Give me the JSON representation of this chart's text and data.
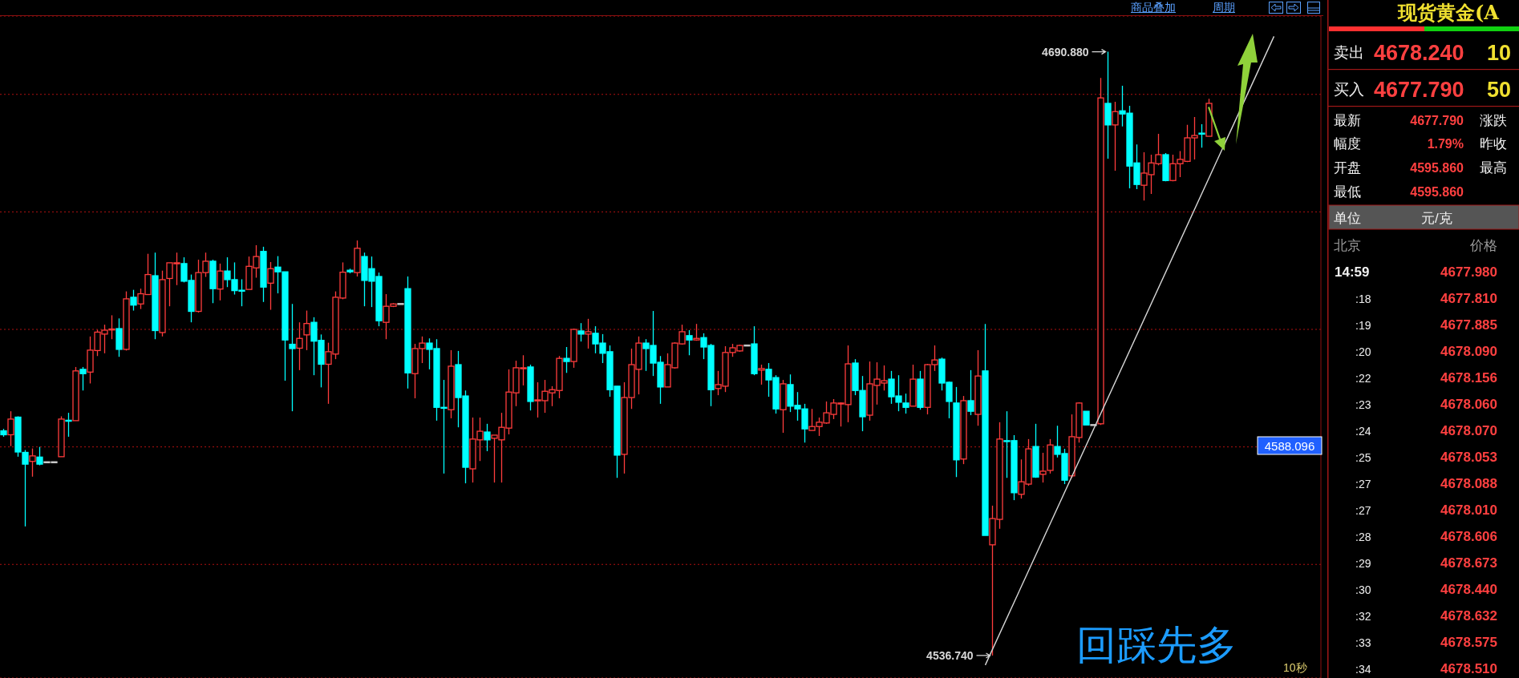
{
  "chart_data": [
    {
      "type": "candlestick",
      "categories": [
        null,
        null,
        null,
        null,
        null,
        null,
        null,
        null,
        null,
        null,
        null,
        null,
        null,
        null,
        null,
        null,
        null,
        null,
        null,
        null,
        null,
        null,
        null,
        null,
        null,
        null,
        null,
        null,
        null,
        null,
        null,
        null,
        null,
        null,
        null,
        null,
        null,
        null,
        null,
        null,
        null,
        null,
        null,
        null,
        null,
        null,
        null,
        null,
        null,
        null,
        null,
        null,
        null,
        null,
        null,
        null,
        null,
        null,
        null,
        null,
        null,
        null,
        null,
        null,
        null,
        null,
        null,
        null,
        null,
        null,
        null,
        null,
        null,
        null,
        null,
        null,
        null,
        null,
        null,
        null,
        null,
        null,
        null,
        null,
        null,
        null,
        null,
        null,
        null,
        null,
        null,
        null,
        null,
        null,
        null,
        null,
        null,
        null,
        null,
        null,
        null,
        null,
        null,
        null,
        null,
        null,
        null,
        null,
        null,
        null,
        null,
        null,
        null,
        null,
        null,
        null,
        null,
        null,
        null,
        null,
        null,
        null,
        null,
        null,
        null,
        null,
        null,
        null,
        null,
        null,
        null,
        null,
        null,
        null,
        null,
        null,
        null,
        null,
        null,
        null,
        null,
        null,
        null,
        null,
        null,
        null,
        null,
        null,
        null,
        null,
        null,
        null,
        null,
        null,
        null,
        null,
        null,
        null,
        null,
        null,
        null,
        null,
        null,
        null,
        null,
        null,
        null,
        null,
        null,
        null,
        null,
        null,
        null,
        null,
        null,
        null,
        null,
        null,
        null,
        null,
        null,
        null,
        null
      ],
      "ohlc": [
        [
          4594.1,
          4594.6,
          4592.6,
          4593.1
        ],
        [
          4593.1,
          4599.1,
          4590.2,
          4597.1
        ],
        [
          4597.6,
          4597.8,
          4587.5,
          4588.7
        ],
        [
          4588.6,
          4589.2,
          4569.7,
          4585.6
        ],
        [
          4586.3,
          4589.6,
          4582.4,
          4587.7
        ],
        [
          4587.4,
          4590.0,
          4585.3,
          4585.6
        ],
        [
          4586.1,
          4586.1,
          4586.1,
          4586.1
        ],
        [
          4586.1,
          4586.1,
          4586.1,
          4586.1
        ],
        [
          4587.5,
          4597.8,
          4587.5,
          4597.1
        ],
        [
          4596.8,
          4598.7,
          4592.6,
          4596.8
        ],
        [
          4596.7,
          4610.4,
          4596.7,
          4609.4
        ],
        [
          4609.8,
          4610.4,
          4604.4,
          4608.7
        ],
        [
          4609.1,
          4618.2,
          4606.2,
          4614.7
        ],
        [
          4614.6,
          4619.9,
          4613.2,
          4619.3
        ],
        [
          4618.8,
          4621.2,
          4613.9,
          4619.8
        ],
        [
          4620.1,
          4623.6,
          4617.5,
          4620.1
        ],
        [
          4620.2,
          4622.8,
          4613.0,
          4614.9
        ],
        [
          4614.9,
          4629.7,
          4614.6,
          4627.8
        ],
        [
          4628.2,
          4630.1,
          4624.8,
          4626.2
        ],
        [
          4626.5,
          4630.4,
          4625.2,
          4629.1
        ],
        [
          4628.9,
          4639.3,
          4628.9,
          4634.0
        ],
        [
          4633.7,
          4639.6,
          4617.5,
          4619.7
        ],
        [
          4619.2,
          4635.0,
          4618.2,
          4632.7
        ],
        [
          4633.0,
          4637.0,
          4625.9,
          4637.0
        ],
        [
          4637.0,
          4639.6,
          4631.3,
          4637.0
        ],
        [
          4636.8,
          4638.4,
          4632.0,
          4632.3
        ],
        [
          4632.5,
          4634.0,
          4621.8,
          4624.6
        ],
        [
          4624.6,
          4637.8,
          4624.3,
          4634.5
        ],
        [
          4634.5,
          4639.6,
          4633.4,
          4637.4
        ],
        [
          4637.4,
          4637.8,
          4626.7,
          4630.4
        ],
        [
          4630.3,
          4636.8,
          4627.4,
          4634.9
        ],
        [
          4634.9,
          4638.4,
          4630.8,
          4632.7
        ],
        [
          4632.7,
          4637.1,
          4628.9,
          4629.9
        ],
        [
          4630.0,
          4632.8,
          4625.9,
          4630.0
        ],
        [
          4630.2,
          4638.6,
          4630.2,
          4636.1
        ],
        [
          4635.7,
          4641.5,
          4633.2,
          4638.6
        ],
        [
          4639.9,
          4641.1,
          4627.0,
          4630.8
        ],
        [
          4631.8,
          4637.2,
          4625.0,
          4635.5
        ],
        [
          4635.9,
          4638.7,
          4629.2,
          4634.7
        ],
        [
          4634.7,
          4634.7,
          4606.9,
          4617.3
        ],
        [
          4616.2,
          4626.5,
          4599.1,
          4615.1
        ],
        [
          4615.2,
          4621.8,
          4609.6,
          4617.7
        ],
        [
          4618.6,
          4624.8,
          4614.7,
          4621.5
        ],
        [
          4621.8,
          4623.1,
          4608.3,
          4617.0
        ],
        [
          4617.2,
          4618.7,
          4605.2,
          4611.1
        ],
        [
          4611.1,
          4616.6,
          4601.0,
          4614.3
        ],
        [
          4613.7,
          4629.7,
          4612.4,
          4628.2
        ],
        [
          4628.0,
          4637.1,
          4627.7,
          4634.6
        ],
        [
          4635.1,
          4635.5,
          4634.3,
          4634.7
        ],
        [
          4634.5,
          4642.7,
          4633.5,
          4640.7
        ],
        [
          4638.6,
          4639.6,
          4625.9,
          4632.5
        ],
        [
          4635.5,
          4638.6,
          4625.7,
          4632.3
        ],
        [
          4633.5,
          4634.5,
          4620.8,
          4622.2
        ],
        [
          4621.8,
          4629.0,
          4617.5,
          4625.9
        ],
        [
          4625.9,
          4626.7,
          4625.7,
          4626.5
        ],
        [
          4626.5,
          4626.5,
          4626.5,
          4626.5
        ],
        [
          4630.4,
          4633.5,
          4604.9,
          4608.9
        ],
        [
          4608.7,
          4616.3,
          4602.4,
          4615.1
        ],
        [
          4615.1,
          4618.2,
          4611.4,
          4616.5
        ],
        [
          4616.5,
          4617.7,
          4609.8,
          4614.9
        ],
        [
          4615.1,
          4617.5,
          4596.7,
          4600.1
        ],
        [
          4600.1,
          4607.1,
          4583.2,
          4600.1
        ],
        [
          4599.5,
          4614.7,
          4597.3,
          4610.6
        ],
        [
          4611.0,
          4614.5,
          4595.0,
          4602.6
        ],
        [
          4603.0,
          4604.4,
          4580.7,
          4584.8
        ],
        [
          4584.4,
          4597.5,
          4580.9,
          4592.0
        ],
        [
          4591.8,
          4597.5,
          4586.4,
          4594.0
        ],
        [
          4593.8,
          4595.9,
          4588.9,
          4591.8
        ],
        [
          4592.2,
          4593.0,
          4580.9,
          4593.0
        ],
        [
          4591.8,
          4598.7,
          4580.9,
          4595.0
        ],
        [
          4594.8,
          4609.8,
          4593.2,
          4604.0
        ],
        [
          4603.8,
          4612.0,
          4600.4,
          4610.2
        ],
        [
          4610.2,
          4613.4,
          4605.7,
          4610.2
        ],
        [
          4610.4,
          4611.0,
          4599.3,
          4601.6
        ],
        [
          4601.8,
          4606.5,
          4597.5,
          4602.0
        ],
        [
          4601.8,
          4607.1,
          4598.7,
          4604.2
        ],
        [
          4603.8,
          4605.5,
          4600.4,
          4604.6
        ],
        [
          4604.4,
          4613.2,
          4602.4,
          4612.6
        ],
        [
          4612.6,
          4615.5,
          4608.9,
          4611.8
        ],
        [
          4611.8,
          4620.2,
          4610.2,
          4620.0
        ],
        [
          4619.6,
          4621.6,
          4616.9,
          4618.8
        ],
        [
          4618.8,
          4622.7,
          4615.1,
          4619.4
        ],
        [
          4619.0,
          4620.8,
          4613.9,
          4616.3
        ],
        [
          4616.5,
          4618.8,
          4611.4,
          4613.9
        ],
        [
          4614.3,
          4615.9,
          4602.8,
          4604.6
        ],
        [
          4605.5,
          4605.5,
          4582.1,
          4587.9
        ],
        [
          4588.1,
          4606.5,
          4583.2,
          4602.6
        ],
        [
          4602.6,
          4615.1,
          4599.7,
          4611.0
        ],
        [
          4609.8,
          4618.2,
          4603.4,
          4616.5
        ],
        [
          4616.5,
          4617.5,
          4609.4,
          4615.1
        ],
        [
          4615.9,
          4624.7,
          4608.1,
          4611.4
        ],
        [
          4611.6,
          4613.2,
          4601.0,
          4605.3
        ],
        [
          4605.3,
          4613.9,
          4605.3,
          4611.0
        ],
        [
          4610.2,
          4616.7,
          4610.0,
          4616.5
        ],
        [
          4616.3,
          4621.2,
          4616.1,
          4619.4
        ],
        [
          4618.4,
          4619.8,
          4613.4,
          4617.3
        ],
        [
          4617.3,
          4621.4,
          4617.1,
          4617.7
        ],
        [
          4617.9,
          4619.0,
          4612.4,
          4615.5
        ],
        [
          4615.9,
          4616.3,
          4600.4,
          4604.6
        ],
        [
          4604.9,
          4609.4,
          4603.2,
          4605.9
        ],
        [
          4605.5,
          4615.7,
          4604.0,
          4614.1
        ],
        [
          4614.1,
          4616.3,
          4613.0,
          4615.3
        ],
        [
          4614.5,
          4616.1,
          4614.3,
          4615.9
        ],
        [
          4615.9,
          4615.9,
          4615.9,
          4615.9
        ],
        [
          4616.3,
          4620.8,
          4608.3,
          4608.7
        ],
        [
          4609.6,
          4611.0,
          4605.9,
          4610.0
        ],
        [
          4609.8,
          4611.4,
          4602.8,
          4607.1
        ],
        [
          4607.7,
          4608.3,
          4598.5,
          4599.7
        ],
        [
          4599.5,
          4607.1,
          4593.6,
          4606.1
        ],
        [
          4605.9,
          4608.5,
          4598.9,
          4600.4
        ],
        [
          4600.6,
          4604.0,
          4596.7,
          4599.7
        ],
        [
          4599.7,
          4601.0,
          4591.1,
          4594.6
        ],
        [
          4594.2,
          4599.7,
          4594.2,
          4595.2
        ],
        [
          4595.2,
          4597.5,
          4592.8,
          4596.3
        ],
        [
          4596.1,
          4601.6,
          4595.9,
          4598.7
        ],
        [
          4598.3,
          4602.2,
          4597.1,
          4601.2
        ],
        [
          4601.2,
          4601.4,
          4595.2,
          4601.2
        ],
        [
          4600.8,
          4615.9,
          4596.3,
          4611.2
        ],
        [
          4611.4,
          4612.4,
          4603.2,
          4604.4
        ],
        [
          4604.4,
          4608.1,
          4594.0,
          4597.7
        ],
        [
          4598.1,
          4611.8,
          4596.7,
          4606.1
        ],
        [
          4605.7,
          4611.6,
          4600.8,
          4607.3
        ],
        [
          4606.3,
          4610.8,
          4604.4,
          4606.9
        ],
        [
          4607.3,
          4609.4,
          4601.0,
          4602.8
        ],
        [
          4603.0,
          4608.3,
          4599.1,
          4601.4
        ],
        [
          4601.2,
          4603.6,
          4598.5,
          4600.1
        ],
        [
          4600.4,
          4611.0,
          4600.4,
          4607.3
        ],
        [
          4607.3,
          4609.4,
          4599.5,
          4600.1
        ],
        [
          4600.1,
          4611.2,
          4598.3,
          4611.0
        ],
        [
          4611.0,
          4615.9,
          4609.4,
          4612.2
        ],
        [
          4612.4,
          4612.8,
          4604.4,
          4606.3
        ],
        [
          4606.5,
          4606.7,
          4597.3,
          4601.6
        ],
        [
          4601.2,
          4605.3,
          4582.3,
          4586.7
        ],
        [
          4586.9,
          4603.0,
          4585.6,
          4601.8
        ],
        [
          4601.8,
          4609.6,
          4598.1,
          4599.1
        ],
        [
          4598.3,
          4614.7,
          4595.4,
          4608.1
        ],
        [
          4609.4,
          4621.4,
          4567.4,
          4567.4
        ],
        [
          4565.0,
          4575.0,
          4536.74,
          4571.7
        ],
        [
          4571.5,
          4596.3,
          4569.1,
          4592.0
        ],
        [
          4591.6,
          4599.1,
          4582.1,
          4591.6
        ],
        [
          4591.6,
          4593.0,
          4576.4,
          4578.3
        ],
        [
          4577.9,
          4586.8,
          4576.8,
          4581.1
        ],
        [
          4580.5,
          4592.0,
          4580.1,
          4589.5
        ],
        [
          4590.1,
          4595.9,
          4582.1,
          4582.3
        ],
        [
          4583.0,
          4588.5,
          4580.9,
          4583.8
        ],
        [
          4584.0,
          4592.0,
          4583.2,
          4590.5
        ],
        [
          4590.1,
          4595.4,
          4587.3,
          4588.1
        ],
        [
          4588.3,
          4589.5,
          4580.5,
          4581.5
        ],
        [
          4582.6,
          4598.3,
          4582.1,
          4592.6
        ],
        [
          4592.4,
          4601.4,
          4591.1,
          4601.2
        ],
        [
          4599.1,
          4599.1,
          4595.6,
          4595.6
        ],
        [
          4595.6,
          4595.6,
          4595.6,
          4595.6
        ],
        [
          4595.9,
          4684.2,
          4595.6,
          4679.1
        ],
        [
          4677.7,
          4690.88,
          4663.6,
          4672.2
        ],
        [
          4672.2,
          4678.1,
          4660.5,
          4675.6
        ],
        [
          4675.8,
          4682.2,
          4671.8,
          4675.0
        ],
        [
          4675.2,
          4677.1,
          4656.0,
          4661.7
        ],
        [
          4662.5,
          4667.2,
          4655.8,
          4657.0
        ],
        [
          4656.8,
          4665.2,
          4652.9,
          4659.9
        ],
        [
          4659.5,
          4664.6,
          4654.6,
          4662.5
        ],
        [
          4662.3,
          4669.9,
          4661.9,
          4664.6
        ],
        [
          4664.6,
          4665.0,
          4657.8,
          4658.0
        ],
        [
          4658.0,
          4664.6,
          4657.8,
          4662.3
        ],
        [
          4662.3,
          4665.5,
          4658.9,
          4663.4
        ],
        [
          4662.9,
          4672.2,
          4662.7,
          4668.9
        ],
        [
          4668.9,
          4674.2,
          4663.4,
          4669.5
        ],
        [
          4670.1,
          4672.4,
          4666.4,
          4670.1
        ],
        [
          4669.3,
          4678.9,
          4669.3,
          4677.7
        ],
        null,
        null,
        null,
        null,
        null,
        null,
        null,
        null,
        null,
        null,
        null,
        null,
        null,
        null,
        null
      ],
      "colors": [
        "#00ffff",
        "#ff3c3c",
        "#00ffff",
        "#00ffff",
        "#ff3c3c",
        "#00ffff",
        "#c8c8c8",
        "#c8c8c8",
        "#ff3c3c",
        "#00ffff",
        "#ff3c3c",
        "#00ffff",
        "#ff3c3c",
        "#ff3c3c",
        "#ff3c3c",
        "#ff3c3c",
        "#00ffff",
        "#ff3c3c",
        "#00ffff",
        "#ff3c3c",
        "#ff3c3c",
        "#00ffff",
        "#ff3c3c",
        "#ff3c3c",
        "#ff3c3c",
        "#00ffff",
        "#00ffff",
        "#ff3c3c",
        "#ff3c3c",
        "#00ffff",
        "#ff3c3c",
        "#00ffff",
        "#00ffff",
        "#00ffff",
        "#ff3c3c",
        "#ff3c3c",
        "#00ffff",
        "#ff3c3c",
        "#00ffff",
        "#00ffff",
        "#00ffff",
        "#ff3c3c",
        "#ff3c3c",
        "#00ffff",
        "#00ffff",
        "#ff3c3c",
        "#ff3c3c",
        "#ff3c3c",
        "#00ffff",
        "#ff3c3c",
        "#00ffff",
        "#00ffff",
        "#00ffff",
        "#ff3c3c",
        "#ff3c3c",
        "#c8c8c8",
        "#00ffff",
        "#ff3c3c",
        "#ff3c3c",
        "#00ffff",
        "#00ffff",
        "#00ffff",
        "#ff3c3c",
        "#00ffff",
        "#00ffff",
        "#ff3c3c",
        "#ff3c3c",
        "#00ffff",
        "#ff3c3c",
        "#ff3c3c",
        "#ff3c3c",
        "#ff3c3c",
        "#ff3c3c",
        "#00ffff",
        "#ff3c3c",
        "#ff3c3c",
        "#ff3c3c",
        "#ff3c3c",
        "#00ffff",
        "#ff3c3c",
        "#00ffff",
        "#ff3c3c",
        "#00ffff",
        "#00ffff",
        "#00ffff",
        "#00ffff",
        "#ff3c3c",
        "#ff3c3c",
        "#ff3c3c",
        "#00ffff",
        "#00ffff",
        "#00ffff",
        "#ff3c3c",
        "#ff3c3c",
        "#ff3c3c",
        "#00ffff",
        "#ff3c3c",
        "#00ffff",
        "#00ffff",
        "#ff3c3c",
        "#ff3c3c",
        "#ff3c3c",
        "#ff3c3c",
        "#c8c8c8",
        "#00ffff",
        "#ff3c3c",
        "#00ffff",
        "#00ffff",
        "#ff3c3c",
        "#00ffff",
        "#00ffff",
        "#00ffff",
        "#ff3c3c",
        "#ff3c3c",
        "#ff3c3c",
        "#ff3c3c",
        "#ff3c3c",
        "#ff3c3c",
        "#00ffff",
        "#00ffff",
        "#ff3c3c",
        "#ff3c3c",
        "#ff3c3c",
        "#00ffff",
        "#00ffff",
        "#00ffff",
        "#ff3c3c",
        "#00ffff",
        "#ff3c3c",
        "#ff3c3c",
        "#00ffff",
        "#00ffff",
        "#00ffff",
        "#ff3c3c",
        "#00ffff",
        "#ff3c3c",
        "#00ffff",
        "#ff3c3c",
        "#ff3c3c",
        "#00ffff",
        "#00ffff",
        "#ff3c3c",
        "#ff3c3c",
        "#00ffff",
        "#ff3c3c",
        "#ff3c3c",
        "#00ffff",
        "#00ffff",
        "#ff3c3c",
        "#ff3c3c",
        "#00ffff",
        "#c8c8c8",
        "#ff3c3c",
        "#00ffff",
        "#ff3c3c",
        "#00ffff",
        "#00ffff",
        "#00ffff",
        "#ff3c3c",
        "#ff3c3c",
        "#ff3c3c",
        "#00ffff",
        "#ff3c3c",
        "#ff3c3c",
        "#ff3c3c",
        "#ff3c3c",
        "#00ffff",
        "#ff3c3c",
        null,
        null,
        null,
        null,
        null,
        null,
        null,
        null,
        null,
        null,
        null,
        null,
        null,
        null,
        null
      ],
      "series": [
        {
          "type": "line",
          "color": "#d8d8d8",
          "values": [
            null,
            null,
            null,
            null,
            null,
            null,
            null,
            null,
            null,
            null,
            null,
            null,
            null,
            null,
            null,
            null,
            null,
            null,
            null,
            null,
            null,
            null,
            null,
            null,
            null,
            null,
            null,
            null,
            null,
            null,
            null,
            null,
            null,
            null,
            null,
            null,
            null,
            null,
            null,
            null,
            null,
            null,
            null,
            null,
            null,
            null,
            null,
            null,
            null,
            null,
            null,
            null,
            null,
            null,
            null,
            null,
            null,
            null,
            null,
            null,
            null,
            null,
            null,
            null,
            null,
            null,
            null,
            null,
            null,
            null,
            null,
            null,
            null,
            null,
            null,
            null,
            null,
            null,
            null,
            null,
            null,
            null,
            null,
            null,
            null,
            null,
            null,
            null,
            null,
            null,
            null,
            null,
            null,
            null,
            null,
            null,
            null,
            null,
            null,
            null,
            null,
            null,
            null,
            null,
            null,
            null,
            null,
            null,
            null,
            null,
            null,
            null,
            null,
            null,
            null,
            null,
            null,
            null,
            null,
            null,
            null,
            null,
            null,
            null,
            null,
            null,
            null,
            null,
            null,
            null,
            null,
            null,
            null,
            null,
            null,
            null,
            4534.3,
            null,
            null,
            null,
            null,
            null,
            null,
            null,
            null,
            null,
            null,
            null,
            null,
            null,
            null,
            null,
            null,
            null,
            null,
            null,
            null,
            null,
            null,
            null,
            null,
            null,
            null,
            null,
            null,
            null,
            null,
            null,
            null,
            null,
            null,
            null,
            null,
            null,
            null,
            null,
            4694.8,
            null,
            null,
            null,
            null,
            null,
            null
          ]
        }
      ],
      "ylim": [
        4531,
        4700
      ],
      "yticks": [
        {
          "value": 4560,
          "label": null
        },
        {
          "value": 4590,
          "label": null
        },
        {
          "value": 4620,
          "label": null
        },
        {
          "value": 4650,
          "label": null
        },
        {
          "value": 4680,
          "label": null
        }
      ],
      "grid": "y",
      "tick_labels": false,
      "annotations": [
        "4690.880",
        "4536.740",
        "4588.096",
        "商品叠加",
        "周期",
        "回踩先多",
        "10秒"
      ]
    },
    {
      "type": "other",
      "title": "现货黄金(A",
      "annotations": [
        "卖出",
        "4678.240",
        "10",
        "买入",
        "4677.790",
        "50",
        "最新",
        "4677.790",
        "涨跌",
        "幅度",
        "1.79%",
        "昨收",
        "开盘",
        "4595.860",
        "最高",
        "最低",
        "4595.860",
        "单位",
        "元/克",
        "北京",
        "价格",
        "14:59",
        "4677.980",
        ":18",
        "4677.810",
        ":19",
        "4677.885",
        ":20",
        "4678.090",
        ":22",
        "4678.156",
        ":23",
        "4678.060",
        ":24",
        "4678.070",
        ":25",
        "4678.053",
        ":27",
        "4678.088",
        ":27",
        "4678.010",
        ":28",
        "4678.606",
        ":29",
        "4678.673",
        ":30",
        "4678.440",
        ":32",
        "4678.632",
        ":33",
        "4678.575",
        ":34",
        "4678.510"
      ]
    }
  ]
}
